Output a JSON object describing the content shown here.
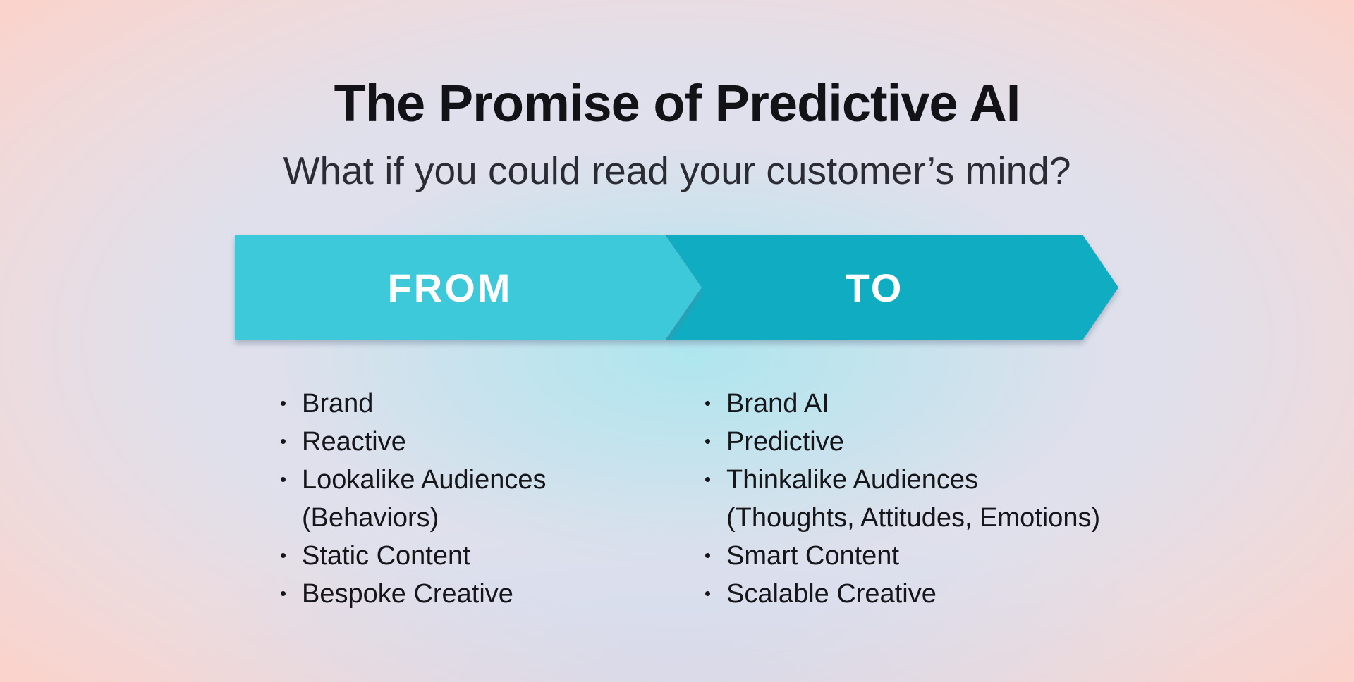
{
  "page": {
    "title_label": "The Promise of Predictive AI",
    "subtitle_label": "What if you could read your customer’s mind?"
  },
  "banner": {
    "from_label": "FROM",
    "to_label": "TO",
    "from_color": "#3ec9db",
    "to_color": "#10adc2",
    "label_color": "#ffffff"
  },
  "lists": {
    "from": {
      "items": [
        [
          "Brand"
        ],
        [
          "Reactive"
        ],
        [
          "Lookalike Audiences",
          "(Behaviors)"
        ],
        [
          "Static Content"
        ],
        [
          "Bespoke Creative"
        ]
      ]
    },
    "to": {
      "items": [
        [
          "Brand AI"
        ],
        [
          "Predictive"
        ],
        [
          "Thinkalike Audiences",
          "(Thoughts, Attitudes, Emotions)"
        ],
        [
          "Smart Content"
        ],
        [
          "Scalable Creative"
        ]
      ]
    }
  },
  "colors": {
    "background_base": "#dfe0ec",
    "background_edge_peach": "#fcd2c9",
    "background_center_cyan": "#ace6ee",
    "text_primary": "#15151a",
    "subtitle_text": "#2b2b33",
    "banner_shadow": "rgba(110,125,150,0.45)"
  }
}
